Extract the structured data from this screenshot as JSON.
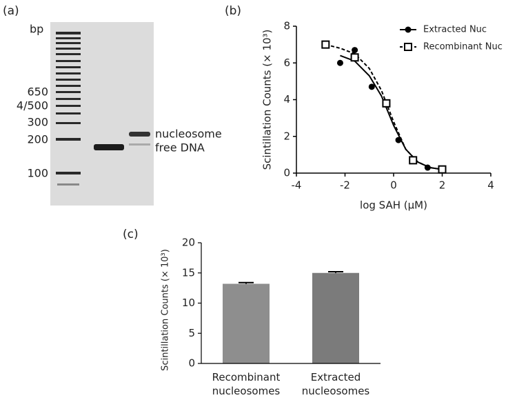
{
  "gel": {
    "panel_label": "(a)",
    "unit_label": "bp",
    "ladder_labels": [
      "650",
      "4/500",
      "300",
      "200",
      "100"
    ],
    "band_labels": [
      "nucleosome",
      "free DNA"
    ]
  },
  "chart_data": [
    {
      "type": "scatter",
      "panel_label": "(b)",
      "x_label": "log SAH (μM)",
      "y_label": "Scintillation Counts (× 10³)",
      "xlim": [
        -4,
        4
      ],
      "xticks": [
        -4,
        -2,
        0,
        2,
        4
      ],
      "ylim": [
        0,
        8
      ],
      "yticks": [
        0,
        2,
        4,
        6,
        8
      ],
      "legend": "top-right",
      "series": [
        {
          "name": "Extracted Nuc",
          "color": "#000000",
          "marker": "circle",
          "line_style": "solid",
          "x": [
            -2.2,
            -1.6,
            -0.9,
            -0.3,
            0.2,
            0.8,
            1.4,
            2.0
          ],
          "values": [
            6.0,
            6.7,
            4.7,
            3.8,
            1.8,
            0.7,
            0.3,
            0.2
          ],
          "fit_x": [
            -2.2,
            -1.6,
            -1.0,
            -0.5,
            0,
            0.5,
            1.0,
            1.5,
            2.0
          ],
          "fit_values": [
            6.4,
            6.1,
            5.3,
            4.2,
            2.6,
            1.3,
            0.6,
            0.3,
            0.2
          ]
        },
        {
          "name": "Recombinant Nuc",
          "color": "#000000",
          "marker": "open-square",
          "line_style": "dashed",
          "x": [
            -2.8,
            -1.6,
            -0.3,
            0.8,
            2.0
          ],
          "values": [
            7.0,
            6.3,
            3.8,
            0.7,
            0.2
          ],
          "fit_x": [
            -2.8,
            -2.2,
            -1.6,
            -1.0,
            -0.5,
            0,
            0.5,
            1.0,
            1.5,
            2.0
          ],
          "fit_values": [
            7.0,
            6.8,
            6.5,
            5.7,
            4.5,
            2.8,
            1.3,
            0.6,
            0.3,
            0.2
          ]
        }
      ]
    },
    {
      "type": "bar",
      "panel_label": "(c)",
      "y_label": "Scintillation Counts (× 10³)",
      "categories": [
        "Recombinant nucleosomes",
        "Extracted nucleosomes"
      ],
      "values": [
        13.2,
        15.0
      ],
      "errors": [
        0.2,
        0.2
      ],
      "colors": [
        "#8e8e8e",
        "#7b7b7b"
      ],
      "ylim": [
        0,
        20
      ],
      "yticks": [
        0,
        5,
        10,
        15,
        20
      ]
    }
  ]
}
